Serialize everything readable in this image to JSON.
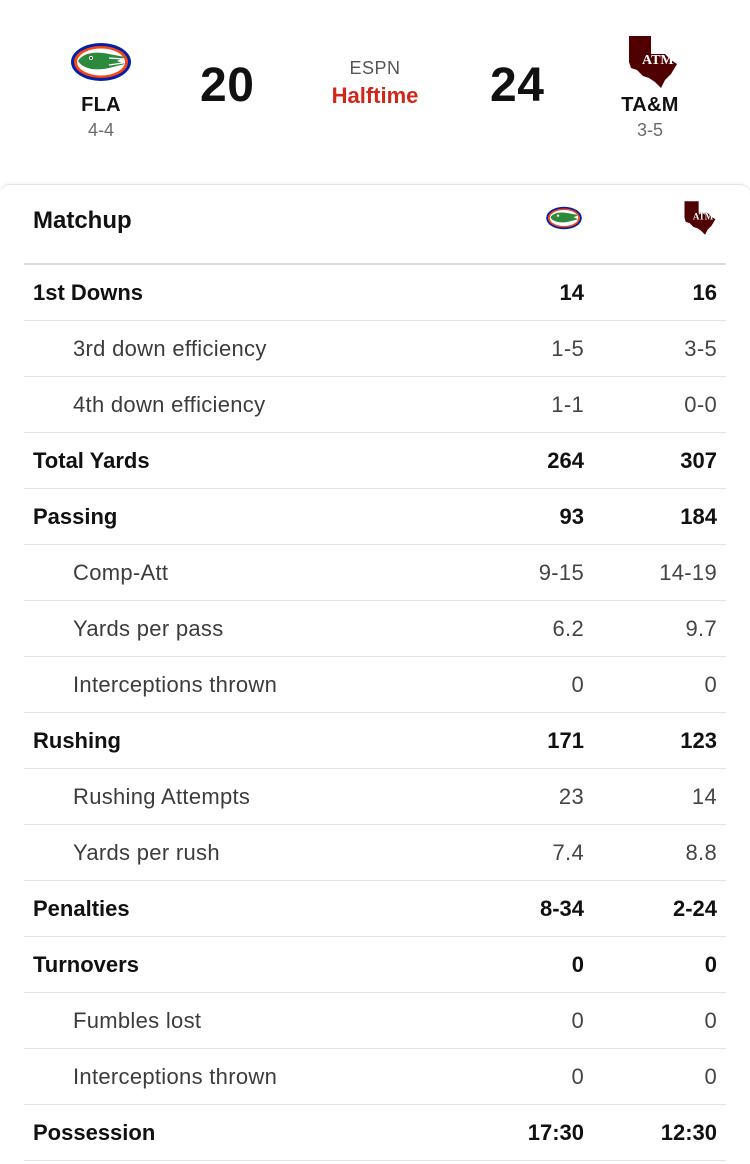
{
  "game": {
    "network": "ESPN",
    "status": "Halftime",
    "status_color": "#d0271b"
  },
  "away": {
    "abbr": "FLA",
    "record": "4-4",
    "score": "20",
    "logo_icon": "florida-gators-logo-icon",
    "colors": {
      "primary": "#0021a5",
      "secondary": "#fa4616",
      "gator": "#2d8a3c"
    }
  },
  "home": {
    "abbr": "TA&M",
    "record": "3-5",
    "score": "24",
    "logo_icon": "texas-am-logo-icon",
    "logo_text": "ATM",
    "colors": {
      "primary": "#500000",
      "secondary": "#ffffff"
    }
  },
  "matchup": {
    "title": "Matchup"
  },
  "stats": [
    {
      "type": "main",
      "label": "1st Downs",
      "away": "14",
      "home": "16"
    },
    {
      "type": "sub",
      "label": "3rd down efficiency",
      "away": "1-5",
      "home": "3-5"
    },
    {
      "type": "sub",
      "label": "4th down efficiency",
      "away": "1-1",
      "home": "0-0"
    },
    {
      "type": "main",
      "label": "Total Yards",
      "away": "264",
      "home": "307"
    },
    {
      "type": "main",
      "label": "Passing",
      "away": "93",
      "home": "184"
    },
    {
      "type": "sub",
      "label": "Comp-Att",
      "away": "9-15",
      "home": "14-19"
    },
    {
      "type": "sub",
      "label": "Yards per pass",
      "away": "6.2",
      "home": "9.7"
    },
    {
      "type": "sub",
      "label": "Interceptions thrown",
      "away": "0",
      "home": "0"
    },
    {
      "type": "main",
      "label": "Rushing",
      "away": "171",
      "home": "123"
    },
    {
      "type": "sub",
      "label": "Rushing Attempts",
      "away": "23",
      "home": "14"
    },
    {
      "type": "sub",
      "label": "Yards per rush",
      "away": "7.4",
      "home": "8.8"
    },
    {
      "type": "main",
      "label": "Penalties",
      "away": "8-34",
      "home": "2-24"
    },
    {
      "type": "main",
      "label": "Turnovers",
      "away": "0",
      "home": "0"
    },
    {
      "type": "sub",
      "label": "Fumbles lost",
      "away": "0",
      "home": "0"
    },
    {
      "type": "sub",
      "label": "Interceptions thrown",
      "away": "0",
      "home": "0"
    },
    {
      "type": "main",
      "label": "Possession",
      "away": "17:30",
      "home": "12:30"
    }
  ]
}
